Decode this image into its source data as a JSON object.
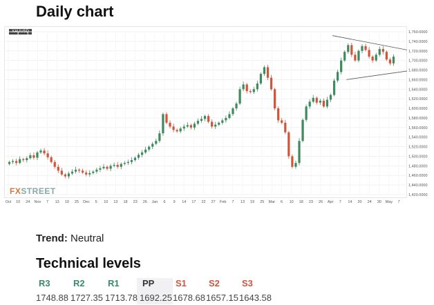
{
  "page": {
    "title": "Daily chart",
    "trend_label": "Trend:",
    "trend_value": "Neutral",
    "levels_title": "Technical levels"
  },
  "chart_data": {
    "type": "candlestick",
    "symbol": "XAUUSD",
    "watermark_a": "FX",
    "watermark_b": "STREET",
    "ylim": [
      1420,
      1760
    ],
    "y_ticks": [
      "1,760.0000",
      "1,740.0000",
      "1,720.0000",
      "1,700.0000",
      "1,680.0000",
      "1,660.0000",
      "1,640.0000",
      "1,620.0000",
      "1,600.0000",
      "1,580.0000",
      "1,560.0000",
      "1,540.0000",
      "1,520.0000",
      "1,500.0000",
      "1,480.0000",
      "1,460.0000",
      "1,440.0000",
      "1,420.0000"
    ],
    "x_ticks": [
      "Oct",
      "10",
      "24",
      "Nov",
      "7",
      "13",
      "19",
      "25",
      "Dec",
      "5",
      "10",
      "13",
      "18",
      "23",
      "26",
      "Jan",
      "6",
      "9",
      "14",
      "17",
      "22",
      "27",
      "Feb",
      "7",
      "13",
      "19",
      "25",
      "Mar",
      "6",
      "10",
      "18",
      "23",
      "26",
      "Apr",
      "7",
      "14",
      "20",
      "24",
      "30",
      "May",
      "7"
    ],
    "close_series": [
      1488,
      1490,
      1486,
      1494,
      1492,
      1496,
      1502,
      1497,
      1508,
      1512,
      1506,
      1498,
      1488,
      1478,
      1470,
      1462,
      1458,
      1464,
      1468,
      1472,
      1470,
      1466,
      1462,
      1465,
      1468,
      1472,
      1475,
      1478,
      1474,
      1480,
      1482,
      1478,
      1484,
      1486,
      1488,
      1492,
      1497,
      1503,
      1508,
      1514,
      1520,
      1526,
      1532,
      1548,
      1588,
      1570,
      1562,
      1555,
      1552,
      1558,
      1562,
      1565,
      1560,
      1568,
      1574,
      1578,
      1584,
      1572,
      1562,
      1566,
      1570,
      1575,
      1580,
      1588,
      1600,
      1610,
      1640,
      1650,
      1636,
      1634,
      1640,
      1652,
      1672,
      1686,
      1664,
      1640,
      1600,
      1575,
      1570,
      1550,
      1500,
      1478,
      1486,
      1532,
      1576,
      1604,
      1614,
      1622,
      1612,
      1616,
      1604,
      1618,
      1628,
      1658,
      1676,
      1700,
      1718,
      1732,
      1712,
      1700,
      1720,
      1730,
      1722,
      1708,
      1700,
      1712,
      1724,
      1718,
      1702,
      1694,
      1708
    ],
    "annotations": [
      "symmetrical-triangle"
    ]
  },
  "levels": {
    "items": [
      {
        "label": "R3",
        "value": "1748.88",
        "color": "#3a8a6a"
      },
      {
        "label": "R2",
        "value": "1727.35",
        "color": "#3a8a6a"
      },
      {
        "label": "R1",
        "value": "1713.78",
        "color": "#3a8a6a"
      },
      {
        "label": "PP",
        "value": "1692.25",
        "color": "#333333"
      },
      {
        "label": "S1",
        "value": "1678.68",
        "color": "#d0553a"
      },
      {
        "label": "S2",
        "value": "1657.15",
        "color": "#d0553a"
      },
      {
        "label": "S3",
        "value": "1643.58",
        "color": "#d0553a"
      }
    ]
  },
  "colors": {
    "up": "#3f8a5e",
    "down": "#d0553a"
  }
}
